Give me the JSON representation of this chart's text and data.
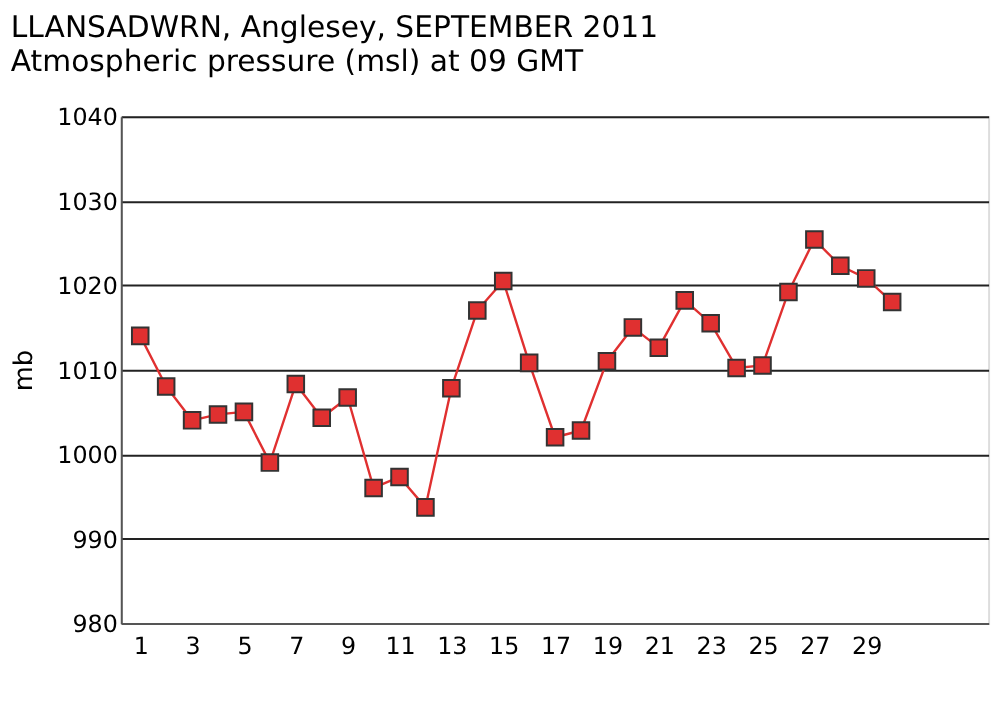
{
  "chart_data": {
    "type": "line",
    "title": [
      "LLANSADWRN, Anglesey,  SEPTEMBER 2011",
      "Atmospheric pressure  (msl) at 09 GMT"
    ],
    "ylabel": "mb",
    "x": [
      1,
      2,
      3,
      4,
      5,
      6,
      7,
      8,
      9,
      10,
      11,
      12,
      13,
      14,
      15,
      16,
      17,
      18,
      19,
      20,
      21,
      22,
      23,
      24,
      25,
      26,
      27,
      28,
      29,
      30
    ],
    "series": [
      {
        "color": "#e03030",
        "values": [
          1014,
          1008,
          1004,
          1004.7,
          1005,
          999,
          1008.3,
          1004.3,
          1006.7,
          996,
          997.3,
          993.7,
          1007.8,
          1017,
          1020.5,
          1010.8,
          1002,
          1002.8,
          1011,
          1015,
          1012.6,
          1018.2,
          1015.5,
          1010.2,
          1010.5,
          1019.2,
          1025.4,
          1022.3,
          1020.8,
          1018
        ]
      }
    ],
    "xlim": [
      0.25,
      33.7
    ],
    "xticks": [
      1,
      3,
      5,
      7,
      9,
      11,
      13,
      15,
      17,
      19,
      21,
      23,
      25,
      27,
      29
    ],
    "ylim": [
      980,
      1040
    ],
    "yticks": [
      980,
      990,
      1000,
      1010,
      1020,
      1030,
      1040
    ],
    "grid": "y",
    "marker": "square",
    "line_style": "solid"
  }
}
